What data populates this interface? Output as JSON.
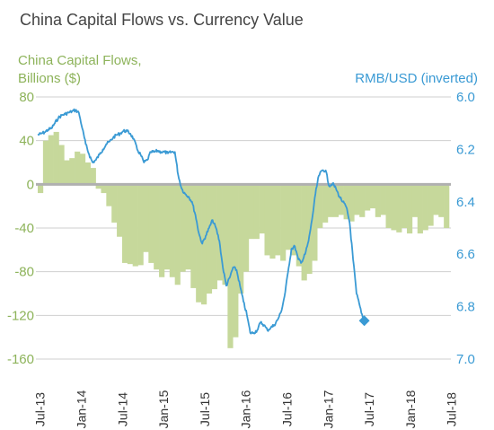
{
  "chart_data": {
    "type": "bar+line",
    "title": "China Capital Flows vs. Currency Value",
    "left_axis": {
      "label_line1": "China Capital Flows,",
      "label_line2": "Billions ($)",
      "min": -160,
      "max": 80,
      "ticks": [
        80,
        40,
        0,
        -40,
        -80,
        -120,
        -160
      ]
    },
    "right_axis": {
      "label": "RMB/USD (inverted)",
      "min": 6.0,
      "max": 7.0,
      "inverted": true,
      "ticks": [
        "6.0",
        "6.2",
        "6.4",
        "6.6",
        "6.8",
        "7.0"
      ],
      "tick_values": [
        6.0,
        6.2,
        6.4,
        6.6,
        6.8,
        7.0
      ]
    },
    "x_axis": {
      "start": "2013-07",
      "end": "2018-07",
      "ticks": [
        "Jul-13",
        "Jan-14",
        "Jul-14",
        "Jan-15",
        "Jul-15",
        "Jan-16",
        "Jul-16",
        "Jan-17",
        "Jul-17",
        "Jan-18",
        "Jul-18"
      ]
    },
    "colors": {
      "bars": "#c6d89b",
      "line": "#3a9ad4",
      "zero_line": "#b0b0b0",
      "grid": "#cfcfcf",
      "left_text": "#8db35a",
      "right_text": "#3a9ad4"
    },
    "flows": [
      -8,
      40,
      45,
      48,
      36,
      22,
      24,
      30,
      28,
      20,
      15,
      -4,
      -8,
      -20,
      -35,
      -48,
      -72,
      -73,
      -75,
      -74,
      -62,
      -72,
      -78,
      -85,
      -78,
      -85,
      -92,
      -80,
      -78,
      -95,
      -108,
      -110,
      -100,
      -96,
      -88,
      -92,
      -150,
      -140,
      -100,
      -80,
      -50,
      -50,
      -45,
      -65,
      -68,
      -65,
      -70,
      -60,
      -65,
      -75,
      -88,
      -82,
      -70,
      -40,
      -35,
      -30,
      -30,
      -28,
      -32,
      -34,
      -28,
      -30,
      -24,
      -22,
      -30,
      -28,
      -40,
      -42,
      -44,
      -40,
      -45,
      -30,
      -45,
      -42,
      -38,
      -28,
      -30,
      -40
    ],
    "rmb": [
      [
        0,
        6.145
      ],
      [
        0.5,
        6.14
      ],
      [
        1,
        6.135
      ],
      [
        1.5,
        6.125
      ],
      [
        2,
        6.12
      ],
      [
        2.5,
        6.1
      ],
      [
        3,
        6.08
      ],
      [
        3.5,
        6.07
      ],
      [
        4,
        6.065
      ],
      [
        4.5,
        6.06
      ],
      [
        5,
        6.055
      ],
      [
        5.5,
        6.05
      ],
      [
        6,
        6.06
      ],
      [
        6.5,
        6.12
      ],
      [
        7,
        6.18
      ],
      [
        7.5,
        6.22
      ],
      [
        8,
        6.25
      ],
      [
        8.5,
        6.24
      ],
      [
        9,
        6.22
      ],
      [
        9.5,
        6.2
      ],
      [
        10,
        6.18
      ],
      [
        10.5,
        6.17
      ],
      [
        11,
        6.155
      ],
      [
        11.5,
        6.145
      ],
      [
        12,
        6.14
      ],
      [
        12.5,
        6.13
      ],
      [
        13,
        6.13
      ],
      [
        13.5,
        6.14
      ],
      [
        14,
        6.16
      ],
      [
        14.5,
        6.2
      ],
      [
        15,
        6.22
      ],
      [
        15.5,
        6.25
      ],
      [
        16,
        6.24
      ],
      [
        16.5,
        6.21
      ],
      [
        17,
        6.21
      ],
      [
        17.5,
        6.205
      ],
      [
        18,
        6.21
      ],
      [
        18.5,
        6.21
      ],
      [
        19,
        6.215
      ],
      [
        19.5,
        6.21
      ],
      [
        20,
        6.21
      ],
      [
        20.5,
        6.3
      ],
      [
        21,
        6.35
      ],
      [
        21.5,
        6.37
      ],
      [
        22,
        6.38
      ],
      [
        22.5,
        6.4
      ],
      [
        23,
        6.45
      ],
      [
        23.5,
        6.52
      ],
      [
        24,
        6.56
      ],
      [
        24.5,
        6.53
      ],
      [
        25,
        6.5
      ],
      [
        25.5,
        6.47
      ],
      [
        26,
        6.5
      ],
      [
        26.5,
        6.55
      ],
      [
        27,
        6.65
      ],
      [
        27.5,
        6.72
      ],
      [
        28,
        6.69
      ],
      [
        28.5,
        6.65
      ],
      [
        29,
        6.66
      ],
      [
        29.5,
        6.72
      ],
      [
        30,
        6.78
      ],
      [
        30.5,
        6.83
      ],
      [
        31,
        6.9
      ],
      [
        31.5,
        6.9
      ],
      [
        32,
        6.89
      ],
      [
        32.5,
        6.86
      ],
      [
        33,
        6.87
      ],
      [
        33.5,
        6.89
      ],
      [
        34,
        6.88
      ],
      [
        34.5,
        6.87
      ],
      [
        35,
        6.85
      ],
      [
        35.5,
        6.82
      ],
      [
        36,
        6.76
      ],
      [
        36.5,
        6.67
      ],
      [
        37,
        6.58
      ],
      [
        37.5,
        6.57
      ],
      [
        38,
        6.62
      ],
      [
        38.5,
        6.63
      ],
      [
        39,
        6.6
      ],
      [
        39.5,
        6.55
      ],
      [
        40,
        6.47
      ],
      [
        40.5,
        6.37
      ],
      [
        41,
        6.3
      ],
      [
        41.5,
        6.28
      ],
      [
        42,
        6.28
      ],
      [
        42.5,
        6.34
      ],
      [
        43,
        6.33
      ],
      [
        43.5,
        6.35
      ],
      [
        44,
        6.38
      ],
      [
        44.5,
        6.4
      ],
      [
        45,
        6.42
      ],
      [
        45.5,
        6.48
      ],
      [
        46,
        6.62
      ],
      [
        46.5,
        6.75
      ],
      [
        47,
        6.8
      ],
      [
        47.5,
        6.85
      ]
    ]
  }
}
